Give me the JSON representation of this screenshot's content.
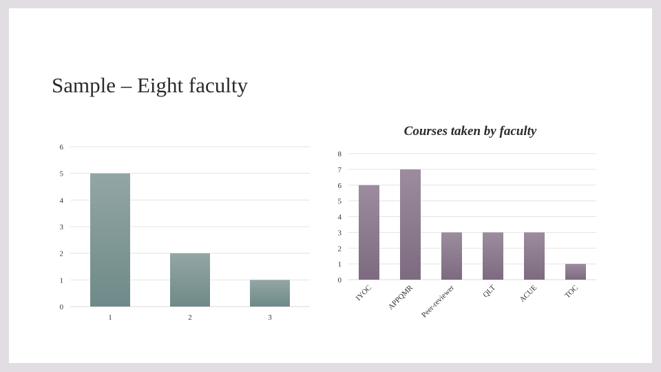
{
  "slide": {
    "title": "Sample – Eight faculty"
  },
  "chart_data": [
    {
      "type": "bar",
      "title": "",
      "xlabel": "",
      "ylabel": "",
      "categories": [
        "1",
        "2",
        "3"
      ],
      "values": [
        5,
        2,
        1
      ],
      "ylim": [
        0,
        6
      ],
      "yticks": [
        0,
        1,
        2,
        3,
        4,
        5,
        6
      ],
      "grid": true,
      "legend": "none",
      "colors": {
        "bar_top": "#93a6a6",
        "bar_bottom": "#6e8a88"
      }
    },
    {
      "type": "bar",
      "title": "Courses taken by faculty",
      "xlabel": "",
      "ylabel": "",
      "categories": [
        "IYOC",
        "APPQMR",
        "Peer-reviewer",
        "QLT",
        "ACUE",
        "TOC"
      ],
      "values": [
        6,
        7,
        3,
        3,
        3,
        1
      ],
      "ylim": [
        0,
        8
      ],
      "yticks": [
        0,
        1,
        2,
        3,
        4,
        5,
        6,
        7,
        8
      ],
      "grid": true,
      "legend": "none",
      "colors": {
        "bar_top": "#9c8c9e",
        "bar_bottom": "#7d6a80"
      }
    }
  ]
}
